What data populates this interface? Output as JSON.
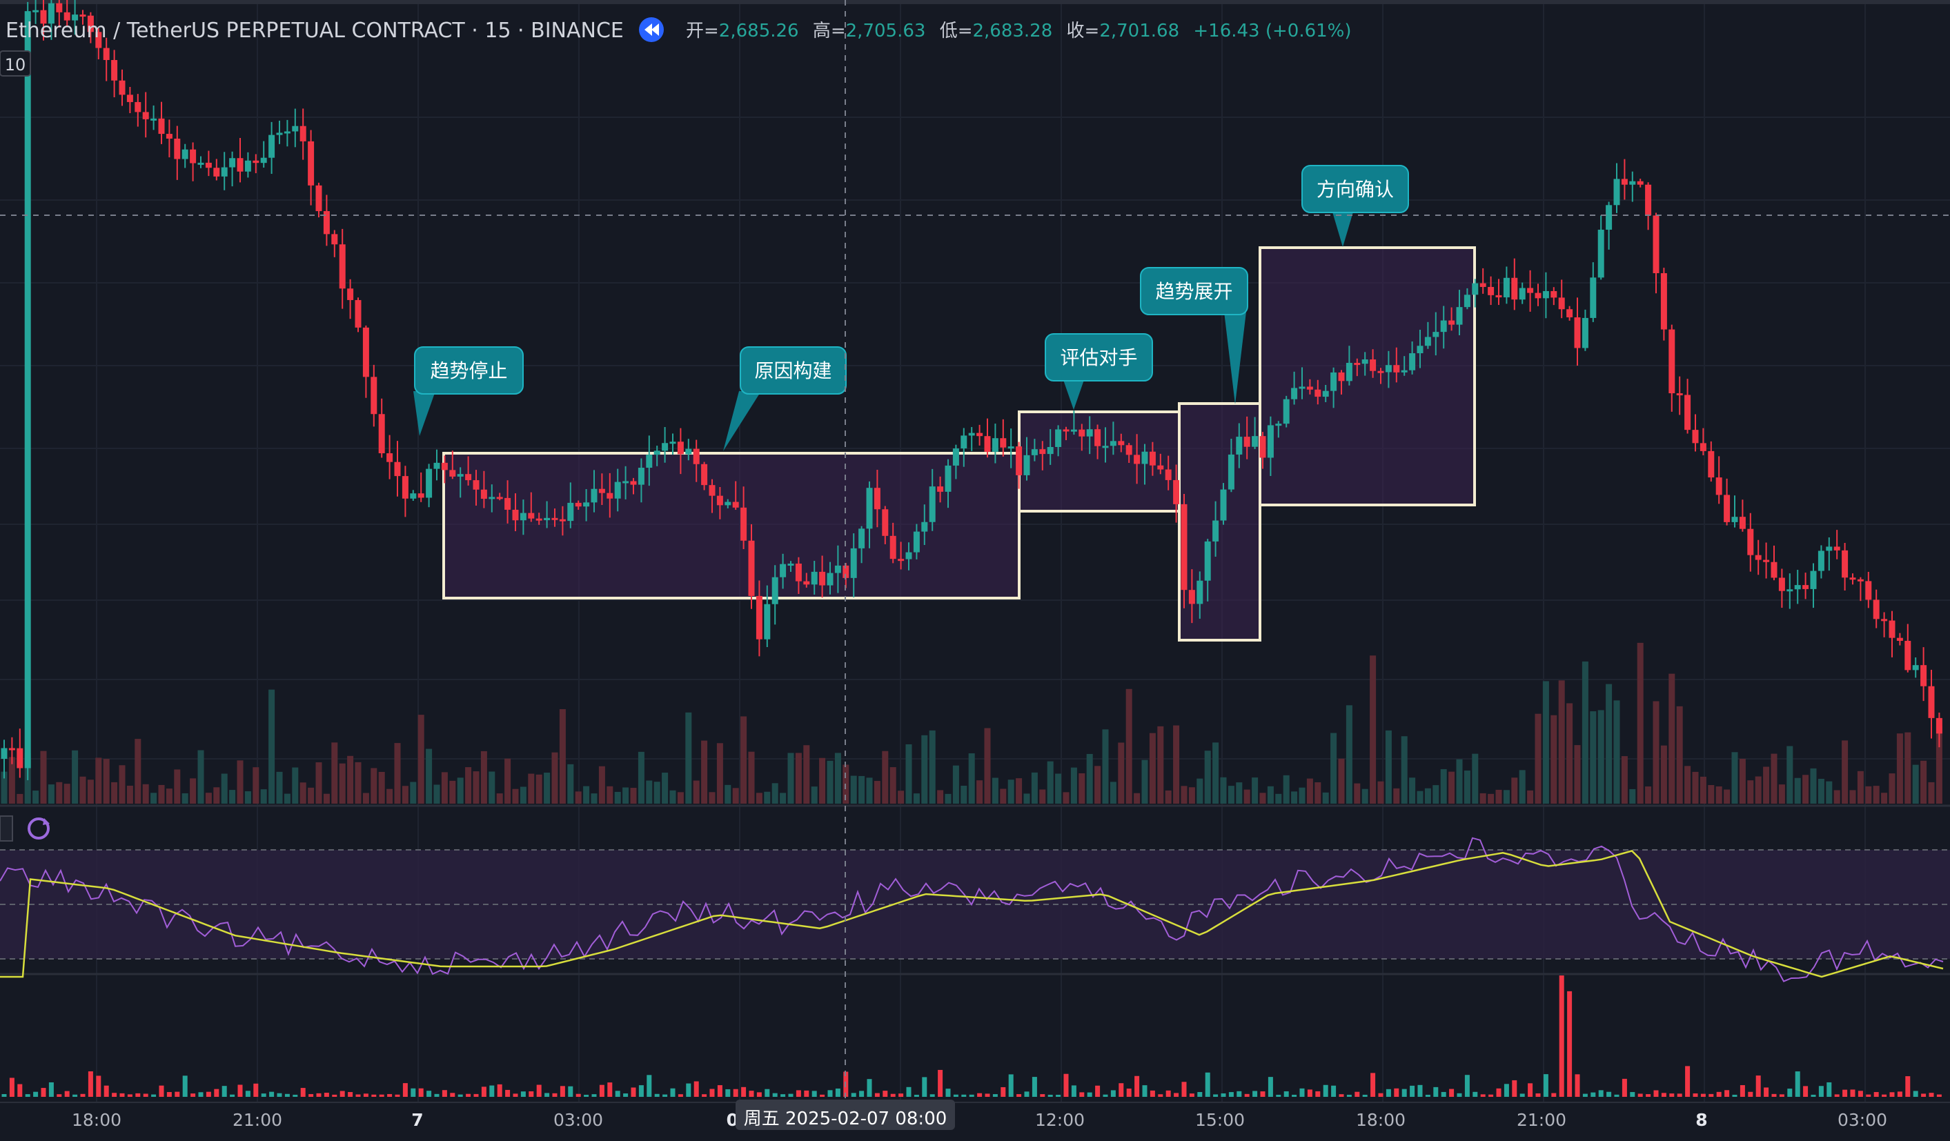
{
  "header": {
    "symbol": "Ethereum / TetherUS PERPETUAL CONTRACT · 15 · BINANCE",
    "ohlc": [
      {
        "label": "开=",
        "value": "2,685.26"
      },
      {
        "label": "高=",
        "value": "2,705.63"
      },
      {
        "label": "低=",
        "value": "2,683.28"
      },
      {
        "label": "收=",
        "value": "2,701.68"
      }
    ],
    "change": "+16.43 (+0.61%)",
    "badge": "10"
  },
  "annotations": [
    "趋势停止",
    "原因构建",
    "评估对手",
    "趋势展开",
    "方向确认"
  ],
  "crosshair_time": "周五 2025-02-07   08:00",
  "colors": {
    "background": "#151923",
    "up": "#26a69a",
    "down": "#f23645",
    "box_fill": "#3a2350",
    "box_border": "#f3ecd0",
    "callout": "#0f7f8d",
    "rsi": "#a25ed8",
    "rsi_ma": "#d8de3c",
    "text": "#c7cbd4",
    "value_green": "#26a69a"
  },
  "chart_data": {
    "type": "candlestick",
    "interval": "15",
    "x_ticks": [
      "18:00",
      "21:00",
      "7",
      "03:00",
      "06",
      "12:00",
      "15:00",
      "18:00",
      "21:00",
      "8",
      "03:00"
    ],
    "seed": 20250207
  }
}
